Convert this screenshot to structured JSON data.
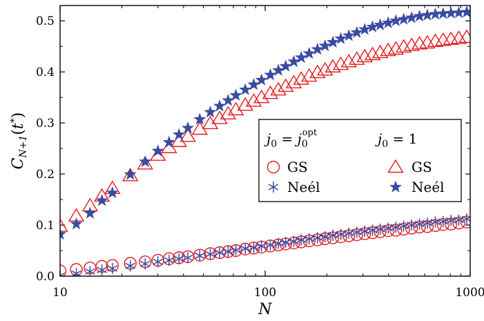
{
  "chart_data": {
    "type": "scatter",
    "x_scale": "log",
    "xlim": [
      10,
      1000
    ],
    "ylim": [
      0,
      0.53
    ],
    "xlabel": "N",
    "ylabel": "C_{N+1}(t*)",
    "x_ticks": [
      10,
      100,
      1000
    ],
    "x_tick_labels": [
      "10",
      "100",
      "1000"
    ],
    "y_ticks": [
      0,
      0.1,
      0.2,
      0.3,
      0.4,
      0.5
    ],
    "y_tick_labels": [
      "0.0",
      "0.1",
      "0.2",
      "0.3",
      "0.4",
      "0.5"
    ],
    "legend": {
      "position": "center-right",
      "columns": [
        "j0 = j0^opt",
        "j0 = 1"
      ],
      "rows": [
        "GS",
        "Neél"
      ]
    },
    "x": [
      10,
      12,
      14,
      16,
      18,
      22,
      26,
      30,
      34,
      38,
      42,
      48,
      54,
      60,
      66,
      72,
      80,
      88,
      96,
      106,
      116,
      126,
      138,
      150,
      164,
      180,
      196,
      214,
      234,
      256,
      280,
      306,
      334,
      364,
      398,
      434,
      474,
      518,
      566,
      618,
      676,
      738,
      806,
      880,
      962
    ],
    "series": [
      {
        "name": "GS (j0 = j0^opt)",
        "marker": "circle",
        "color": "#e41a1c",
        "values": [
          0.01,
          0.013,
          0.016,
          0.019,
          0.021,
          0.025,
          0.028,
          0.031,
          0.034,
          0.036,
          0.038,
          0.041,
          0.044,
          0.046,
          0.048,
          0.05,
          0.053,
          0.055,
          0.057,
          0.059,
          0.061,
          0.063,
          0.065,
          0.067,
          0.069,
          0.071,
          0.073,
          0.075,
          0.077,
          0.079,
          0.081,
          0.083,
          0.085,
          0.087,
          0.089,
          0.09,
          0.092,
          0.094,
          0.096,
          0.097,
          0.099,
          0.101,
          0.102,
          0.104,
          0.106
        ]
      },
      {
        "name": "Neél (j0 = j0^opt)",
        "marker": "asterisk",
        "color": "#3a4ba0",
        "values": [
          0.001,
          0.005,
          0.009,
          0.012,
          0.015,
          0.02,
          0.024,
          0.028,
          0.031,
          0.034,
          0.036,
          0.04,
          0.043,
          0.046,
          0.048,
          0.051,
          0.054,
          0.056,
          0.059,
          0.061,
          0.064,
          0.066,
          0.068,
          0.071,
          0.073,
          0.075,
          0.077,
          0.08,
          0.082,
          0.084,
          0.086,
          0.088,
          0.09,
          0.092,
          0.094,
          0.096,
          0.098,
          0.1,
          0.102,
          0.104,
          0.106,
          0.107,
          0.109,
          0.11,
          0.112
        ]
      },
      {
        "name": "GS (j0 = 1)",
        "marker": "triangle",
        "color": "#e41a1c",
        "values": [
          0.098,
          0.118,
          0.138,
          0.157,
          0.172,
          0.197,
          0.22,
          0.237,
          0.252,
          0.264,
          0.274,
          0.288,
          0.299,
          0.309,
          0.318,
          0.326,
          0.335,
          0.343,
          0.35,
          0.358,
          0.365,
          0.372,
          0.379,
          0.386,
          0.392,
          0.399,
          0.404,
          0.41,
          0.415,
          0.42,
          0.425,
          0.43,
          0.434,
          0.438,
          0.442,
          0.445,
          0.449,
          0.452,
          0.455,
          0.457,
          0.46,
          0.462,
          0.464,
          0.466,
          0.468
        ]
      },
      {
        "name": "Neél (j0 = 1)",
        "marker": "star",
        "color": "#3a4ba0",
        "values": [
          0.082,
          0.102,
          0.123,
          0.148,
          0.163,
          0.199,
          0.224,
          0.245,
          0.262,
          0.277,
          0.29,
          0.307,
          0.321,
          0.333,
          0.344,
          0.354,
          0.365,
          0.375,
          0.384,
          0.394,
          0.403,
          0.411,
          0.42,
          0.428,
          0.436,
          0.444,
          0.451,
          0.458,
          0.465,
          0.471,
          0.477,
          0.483,
          0.488,
          0.492,
          0.496,
          0.5,
          0.503,
          0.506,
          0.509,
          0.511,
          0.513,
          0.514,
          0.515,
          0.516,
          0.517
        ]
      }
    ]
  }
}
